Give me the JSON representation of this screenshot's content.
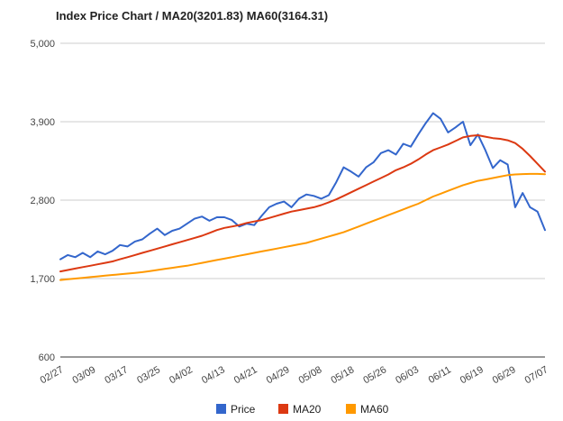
{
  "chart_data": {
    "type": "line",
    "title": "Index Price Chart / MA20(3201.83) MA60(3164.31)",
    "xlabel": "",
    "ylabel": "",
    "ylim": [
      600,
      5000
    ],
    "yticks": [
      600,
      1700,
      2800,
      3900,
      5000
    ],
    "ytick_labels": [
      "600",
      "1,700",
      "2,800",
      "3,900",
      "5,000"
    ],
    "x_tick_labels": [
      "02/27",
      "03/09",
      "03/17",
      "03/25",
      "04/02",
      "04/13",
      "04/21",
      "04/29",
      "05/08",
      "05/18",
      "05/26",
      "06/03",
      "06/11",
      "06/19",
      "06/29",
      "07/07"
    ],
    "grid": true,
    "legend_position": "bottom",
    "colors": {
      "Price": "#3366cc",
      "MA20": "#dc3912",
      "MA60": "#ff9900"
    },
    "series": [
      {
        "name": "Price",
        "values": [
          1970,
          2030,
          2000,
          2060,
          2000,
          2080,
          2040,
          2090,
          2170,
          2150,
          2220,
          2250,
          2330,
          2400,
          2310,
          2370,
          2400,
          2470,
          2540,
          2570,
          2510,
          2560,
          2560,
          2520,
          2430,
          2470,
          2450,
          2580,
          2700,
          2750,
          2780,
          2700,
          2820,
          2880,
          2860,
          2820,
          2870,
          3050,
          3260,
          3200,
          3130,
          3260,
          3330,
          3460,
          3500,
          3440,
          3590,
          3550,
          3720,
          3880,
          4020,
          3940,
          3750,
          3820,
          3900,
          3570,
          3720,
          3500,
          3250,
          3360,
          3300,
          2700,
          2900,
          2700,
          2640,
          2380
        ]
      },
      {
        "name": "MA20",
        "values": [
          1800,
          1820,
          1840,
          1860,
          1880,
          1900,
          1920,
          1940,
          1970,
          2000,
          2030,
          2060,
          2090,
          2120,
          2150,
          2180,
          2210,
          2240,
          2270,
          2300,
          2340,
          2380,
          2410,
          2430,
          2450,
          2480,
          2500,
          2520,
          2550,
          2580,
          2610,
          2640,
          2660,
          2680,
          2700,
          2730,
          2770,
          2810,
          2860,
          2910,
          2960,
          3010,
          3060,
          3110,
          3160,
          3220,
          3260,
          3310,
          3370,
          3440,
          3500,
          3540,
          3580,
          3630,
          3680,
          3700,
          3710,
          3690,
          3670,
          3660,
          3640,
          3600,
          3520,
          3420,
          3310,
          3200
        ]
      },
      {
        "name": "MA60",
        "values": [
          1680,
          1690,
          1700,
          1710,
          1720,
          1730,
          1740,
          1750,
          1760,
          1770,
          1780,
          1790,
          1805,
          1820,
          1835,
          1850,
          1865,
          1880,
          1900,
          1920,
          1940,
          1960,
          1980,
          2000,
          2020,
          2040,
          2060,
          2080,
          2100,
          2120,
          2140,
          2160,
          2180,
          2200,
          2230,
          2260,
          2290,
          2320,
          2350,
          2390,
          2430,
          2470,
          2510,
          2550,
          2590,
          2630,
          2670,
          2710,
          2750,
          2800,
          2850,
          2890,
          2930,
          2970,
          3010,
          3040,
          3070,
          3090,
          3110,
          3130,
          3150,
          3160,
          3165,
          3168,
          3168,
          3164
        ]
      }
    ]
  }
}
